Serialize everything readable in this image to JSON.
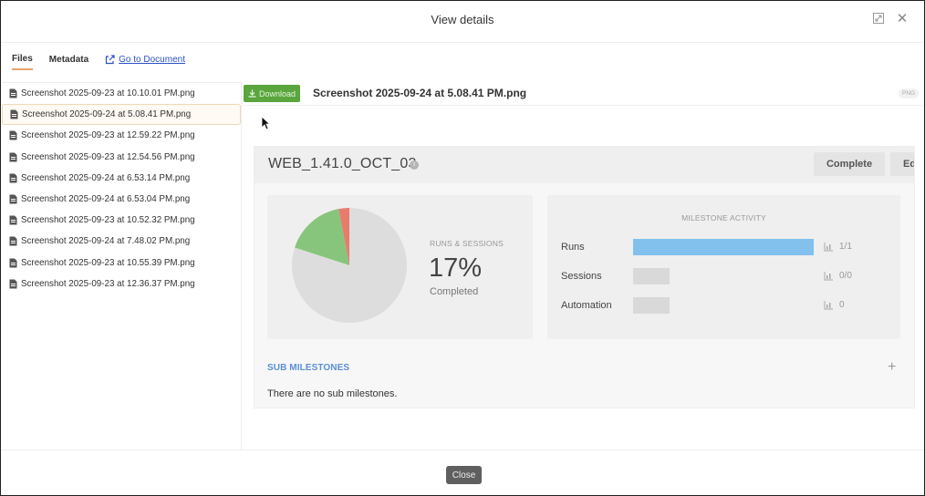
{
  "dialog": {
    "title": "View details",
    "close_label": "Close"
  },
  "tabs": {
    "files": "Files",
    "metadata": "Metadata",
    "go_to_document": "Go to Document"
  },
  "files": [
    "Screenshot 2025-09-23 at 10.10.01 PM.png",
    "Screenshot 2025-09-24 at 5.08.41 PM.png",
    "Screenshot 2025-09-23 at 12.59.22 PM.png",
    "Screenshot 2025-09-23 at 12.54.56 PM.png",
    "Screenshot 2025-09-24 at 6.53.14 PM.png",
    "Screenshot 2025-09-24 at 6.53.04 PM.png",
    "Screenshot 2025-09-23 at 10.52.32 PM.png",
    "Screenshot 2025-09-24 at 7.48.02 PM.png",
    "Screenshot 2025-09-23 at 10.55.39 PM.png",
    "Screenshot 2025-09-23 at 12.36.37 PM.png"
  ],
  "selected_file_index": 1,
  "preview": {
    "download_label": "Download",
    "file_name": "Screenshot 2025-09-24 at 5.08.41 PM.png",
    "file_type": "PNG"
  },
  "milestone": {
    "name": "WEB_1.41.0_OCT_03",
    "complete_label": "Complete",
    "edit_label": "Ed",
    "runs_sessions": {
      "label": "RUNS & SESSIONS",
      "percent": "17%",
      "sub": "Completed"
    },
    "activity": {
      "title": "MILESTONE ACTIVITY",
      "rows": [
        {
          "label": "Runs",
          "value": "1/1",
          "fill": 1.0,
          "color": "#82c0ee"
        },
        {
          "label": "Sessions",
          "value": "0/0",
          "fill": 0.2,
          "color": "#d9d9d9"
        },
        {
          "label": "Automation",
          "value": "0",
          "fill": 0.2,
          "color": "#d9d9d9"
        }
      ]
    },
    "sub_milestones": {
      "title": "SUB MILESTONES",
      "empty": "There are no sub milestones."
    }
  },
  "chart_data": {
    "type": "pie",
    "slices": [
      {
        "name": "",
        "value": 80,
        "color": "#dddddd"
      },
      {
        "name": "",
        "value": 17,
        "color": "#88c57c"
      },
      {
        "name": "",
        "value": 3,
        "color": "#e87c6c"
      }
    ]
  },
  "colors": {
    "accent_tab": "#e8a36a",
    "download": "#5aa53d",
    "link": "#2b52c5",
    "sub_title": "#5b8fd6"
  }
}
